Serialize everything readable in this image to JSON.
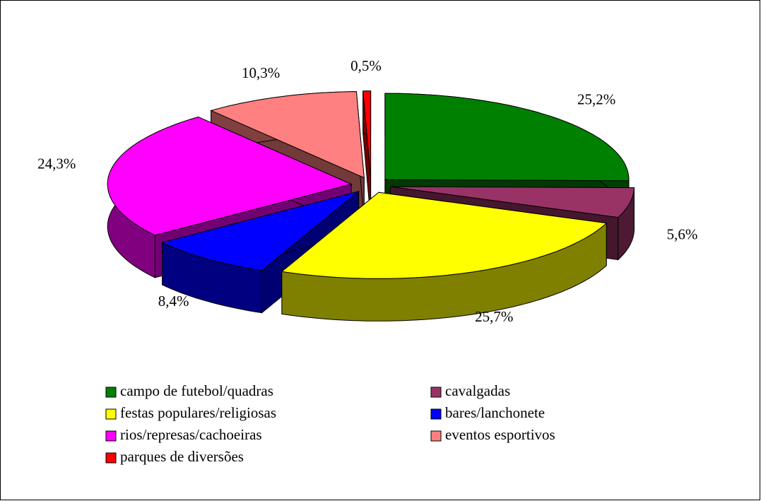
{
  "chart_data": {
    "type": "pie3d",
    "categories": [
      "campo de futebol/quadras",
      "cavalgadas",
      "festas populares/religiosas",
      "bares/lanchonete",
      "rios/represas/cachoeiras",
      "eventos esportivos",
      "parques de diversões"
    ],
    "values": [
      25.2,
      5.6,
      25.7,
      8.4,
      24.3,
      10.3,
      0.5
    ],
    "value_labels": [
      "25,2%",
      "5,6%",
      "25,7%",
      "8,4%",
      "24,3%",
      "10,3%",
      "0,5%"
    ],
    "colors": [
      "#008000",
      "#993366",
      "#ffff00",
      "#0000ff",
      "#ff00ff",
      "#ff8080",
      "#ff0000"
    ]
  }
}
